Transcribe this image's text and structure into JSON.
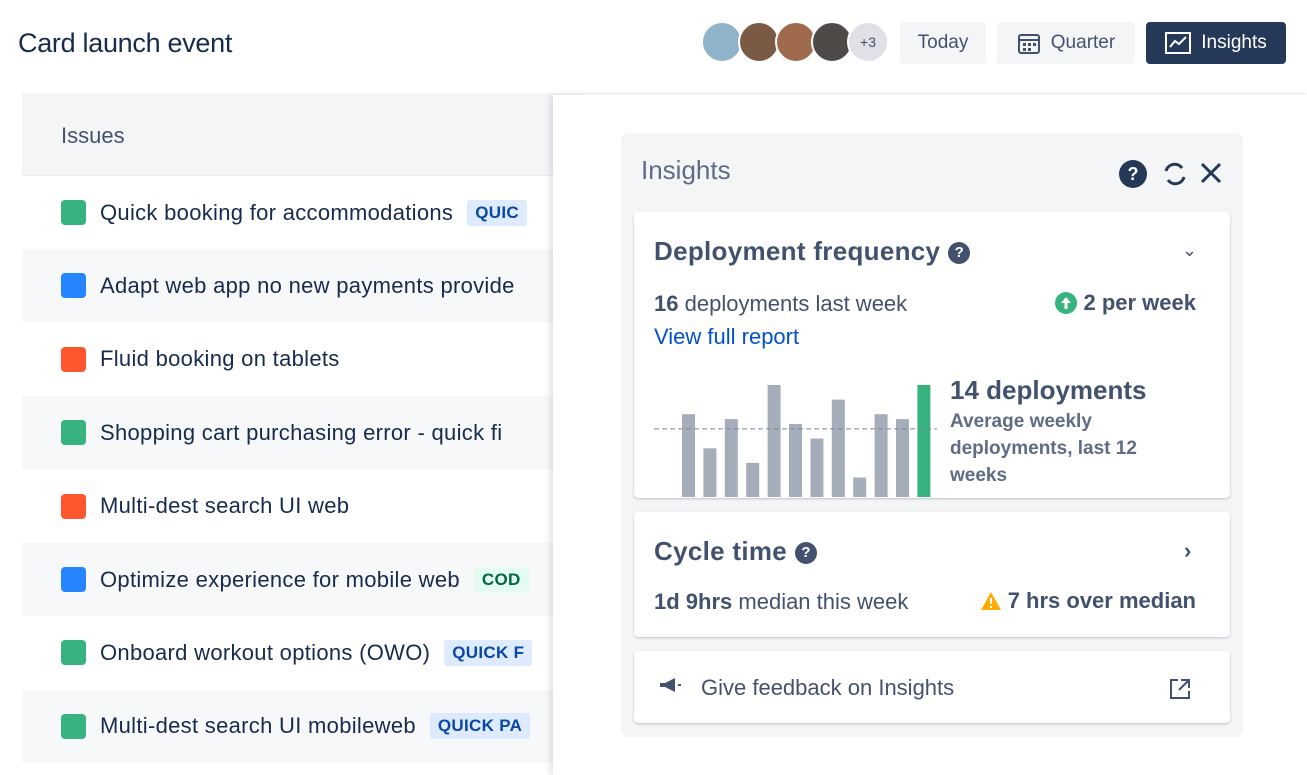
{
  "header": {
    "title": "Card launch event",
    "avatars_more": "+3",
    "buttons": [
      "Today",
      "Quarter",
      "Insights"
    ]
  },
  "issues": {
    "heading": "Issues",
    "items": [
      {
        "title": "Quick booking for accommodations",
        "tag": "QUIC"
      },
      {
        "title": "Adapt web app no new payments provide"
      },
      {
        "title": "Fluid booking on tablets"
      },
      {
        "title": "Shopping cart purchasing error - quick fi"
      },
      {
        "title": "Multi-dest search UI web"
      },
      {
        "title": "Optimize experience for mobile web",
        "tag": "COD"
      },
      {
        "title": "Onboard workout options (OWO)",
        "tag": "QUICK F"
      },
      {
        "title": "Multi-dest search UI mobileweb",
        "tag": "QUICK PA"
      }
    ]
  },
  "insights": {
    "title": "Insights",
    "deployment_frequency": {
      "title": "Deployment frequency",
      "last_week_count": 16,
      "last_week_text": "deployments last week",
      "trend": "2 per week",
      "link": "View full report",
      "chart": {
        "type": "bar",
        "values": [
          17,
          10,
          16,
          7,
          23,
          15,
          12,
          20,
          4,
          17,
          16,
          23
        ],
        "color": "#a5adba",
        "highlight_color": "#36b37e",
        "average": {
          "value": 14,
          "label": "14 deployments"
        },
        "average_note": "Average weekly deployments, last 12 weeks"
      }
    },
    "cycle_time": {
      "title": "Cycle time",
      "value": "1d 9hrs",
      "value_text": "median this week",
      "warning": "7 hrs over median"
    },
    "feedback": "Give feedback on Insights"
  }
}
